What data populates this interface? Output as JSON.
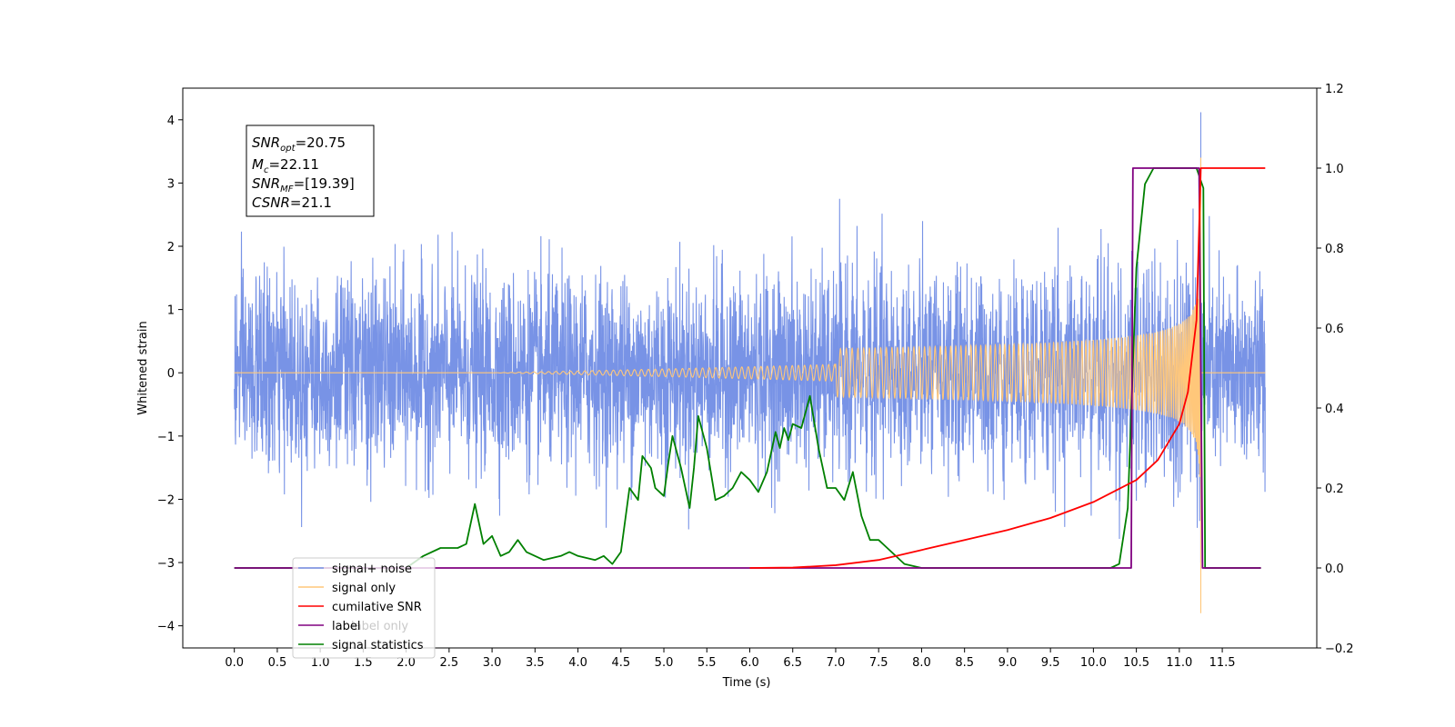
{
  "chart_data": {
    "type": "line",
    "title": "",
    "xlabel": "Time (s)",
    "ylabel": "Whitened strain",
    "xlim": [
      -0.6,
      12.6
    ],
    "ylim": [
      -4.35,
      4.5
    ],
    "y2lim": [
      -0.2,
      1.2
    ],
    "x_ticks": [
      0.0,
      0.5,
      1.0,
      1.5,
      2.0,
      2.5,
      3.0,
      3.5,
      4.0,
      4.5,
      5.0,
      5.5,
      6.0,
      6.5,
      7.0,
      7.5,
      8.0,
      8.5,
      9.0,
      9.5,
      10.0,
      10.5,
      11.0,
      11.5
    ],
    "x_tick_labels": [
      "0.0",
      "0.5",
      "1.0",
      "1.5",
      "2.0",
      "2.5",
      "3.0",
      "3.5",
      "4.0",
      "4.5",
      "5.0",
      "5.5",
      "6.0",
      "6.5",
      "7.0",
      "7.5",
      "8.0",
      "8.5",
      "9.0",
      "9.5",
      "10.0",
      "10.5",
      "11.0",
      "11.5"
    ],
    "y_ticks": [
      -4,
      -3,
      -2,
      -1,
      0,
      1,
      2,
      3,
      4
    ],
    "y_tick_labels": [
      "−4",
      "−3",
      "−2",
      "−1",
      "0",
      "1",
      "2",
      "3",
      "4"
    ],
    "y2_ticks": [
      -0.2,
      0.0,
      0.2,
      0.4,
      0.6,
      0.8,
      1.0,
      1.2
    ],
    "y2_tick_labels": [
      "−0.2",
      "0.0",
      "0.2",
      "0.4",
      "0.6",
      "0.8",
      "1.0",
      "1.2"
    ],
    "grid": false,
    "legend_position": "lower-left",
    "annotation_lines": [
      {
        "label": "SNR",
        "sub": "opt",
        "value": "=20.75"
      },
      {
        "label": "M",
        "sub": "c",
        "value": "=22.11"
      },
      {
        "label": "SNR",
        "sub": "MF",
        "value": "=[19.39]"
      },
      {
        "label": "CSNR",
        "sub": "",
        "value": "=21.1"
      }
    ],
    "series": [
      {
        "name": "signal+ noise",
        "axis": "left",
        "color": "#7893e6",
        "noise_std": 0.75,
        "x_range": [
          0.0,
          12.0
        ],
        "spike_x": 11.25,
        "spike_min": -3.0,
        "spike_max": 4.12
      },
      {
        "name": "signal only",
        "axis": "left",
        "color": "#ffc77a",
        "chirp_start": 7.0,
        "merger_x": 11.25,
        "peak_amplitude": 3.4,
        "min_value": -3.8,
        "x_range": [
          0.0,
          12.0
        ]
      },
      {
        "name": "cumilative SNR",
        "axis": "right",
        "color": "#ff0000",
        "points": [
          [
            6.0,
            0.0
          ],
          [
            6.5,
            0.001
          ],
          [
            7.0,
            0.007
          ],
          [
            7.5,
            0.02
          ],
          [
            8.0,
            0.045
          ],
          [
            8.5,
            0.07
          ],
          [
            9.0,
            0.095
          ],
          [
            9.5,
            0.125
          ],
          [
            10.0,
            0.165
          ],
          [
            10.5,
            0.22
          ],
          [
            10.75,
            0.27
          ],
          [
            11.0,
            0.36
          ],
          [
            11.1,
            0.44
          ],
          [
            11.2,
            0.62
          ],
          [
            11.25,
            1.0
          ],
          [
            12.0,
            1.0
          ]
        ]
      },
      {
        "name": "label",
        "axis": "right",
        "color": "#800080",
        "points": [
          [
            0.0,
            0.0
          ],
          [
            10.44,
            0.0
          ],
          [
            10.46,
            1.0
          ],
          [
            11.23,
            1.0
          ],
          [
            11.27,
            0.0
          ],
          [
            11.95,
            0.0
          ]
        ]
      },
      {
        "name": "signal statistics",
        "axis": "right",
        "color": "#008000",
        "points": [
          [
            0.0,
            0.0
          ],
          [
            2.0,
            0.0
          ],
          [
            2.2,
            0.03
          ],
          [
            2.4,
            0.05
          ],
          [
            2.5,
            0.05
          ],
          [
            2.6,
            0.05
          ],
          [
            2.7,
            0.06
          ],
          [
            2.8,
            0.16
          ],
          [
            2.9,
            0.06
          ],
          [
            3.0,
            0.08
          ],
          [
            3.1,
            0.03
          ],
          [
            3.2,
            0.04
          ],
          [
            3.3,
            0.07
          ],
          [
            3.4,
            0.04
          ],
          [
            3.6,
            0.02
          ],
          [
            3.8,
            0.03
          ],
          [
            3.9,
            0.04
          ],
          [
            4.0,
            0.03
          ],
          [
            4.2,
            0.02
          ],
          [
            4.3,
            0.03
          ],
          [
            4.4,
            0.01
          ],
          [
            4.5,
            0.04
          ],
          [
            4.6,
            0.2
          ],
          [
            4.7,
            0.17
          ],
          [
            4.75,
            0.28
          ],
          [
            4.85,
            0.25
          ],
          [
            4.9,
            0.2
          ],
          [
            5.0,
            0.18
          ],
          [
            5.05,
            0.26
          ],
          [
            5.1,
            0.33
          ],
          [
            5.2,
            0.25
          ],
          [
            5.3,
            0.15
          ],
          [
            5.35,
            0.25
          ],
          [
            5.4,
            0.38
          ],
          [
            5.5,
            0.3
          ],
          [
            5.6,
            0.17
          ],
          [
            5.7,
            0.18
          ],
          [
            5.8,
            0.2
          ],
          [
            5.9,
            0.24
          ],
          [
            6.0,
            0.22
          ],
          [
            6.1,
            0.19
          ],
          [
            6.2,
            0.24
          ],
          [
            6.3,
            0.34
          ],
          [
            6.35,
            0.3
          ],
          [
            6.4,
            0.35
          ],
          [
            6.45,
            0.32
          ],
          [
            6.5,
            0.36
          ],
          [
            6.6,
            0.35
          ],
          [
            6.7,
            0.43
          ],
          [
            6.8,
            0.3
          ],
          [
            6.9,
            0.2
          ],
          [
            7.0,
            0.2
          ],
          [
            7.1,
            0.17
          ],
          [
            7.2,
            0.24
          ],
          [
            7.3,
            0.13
          ],
          [
            7.4,
            0.07
          ],
          [
            7.5,
            0.07
          ],
          [
            7.6,
            0.05
          ],
          [
            7.8,
            0.01
          ],
          [
            8.0,
            0.0
          ],
          [
            10.2,
            0.0
          ],
          [
            10.3,
            0.01
          ],
          [
            10.4,
            0.15
          ],
          [
            10.5,
            0.75
          ],
          [
            10.6,
            0.96
          ],
          [
            10.7,
            1.0
          ],
          [
            11.0,
            1.0
          ],
          [
            11.2,
            1.0
          ],
          [
            11.28,
            0.95
          ],
          [
            11.3,
            0.0
          ],
          [
            11.95,
            0.0
          ]
        ]
      },
      {
        "name": "label only",
        "axis": "right",
        "color": "#808080",
        "points": []
      }
    ]
  }
}
